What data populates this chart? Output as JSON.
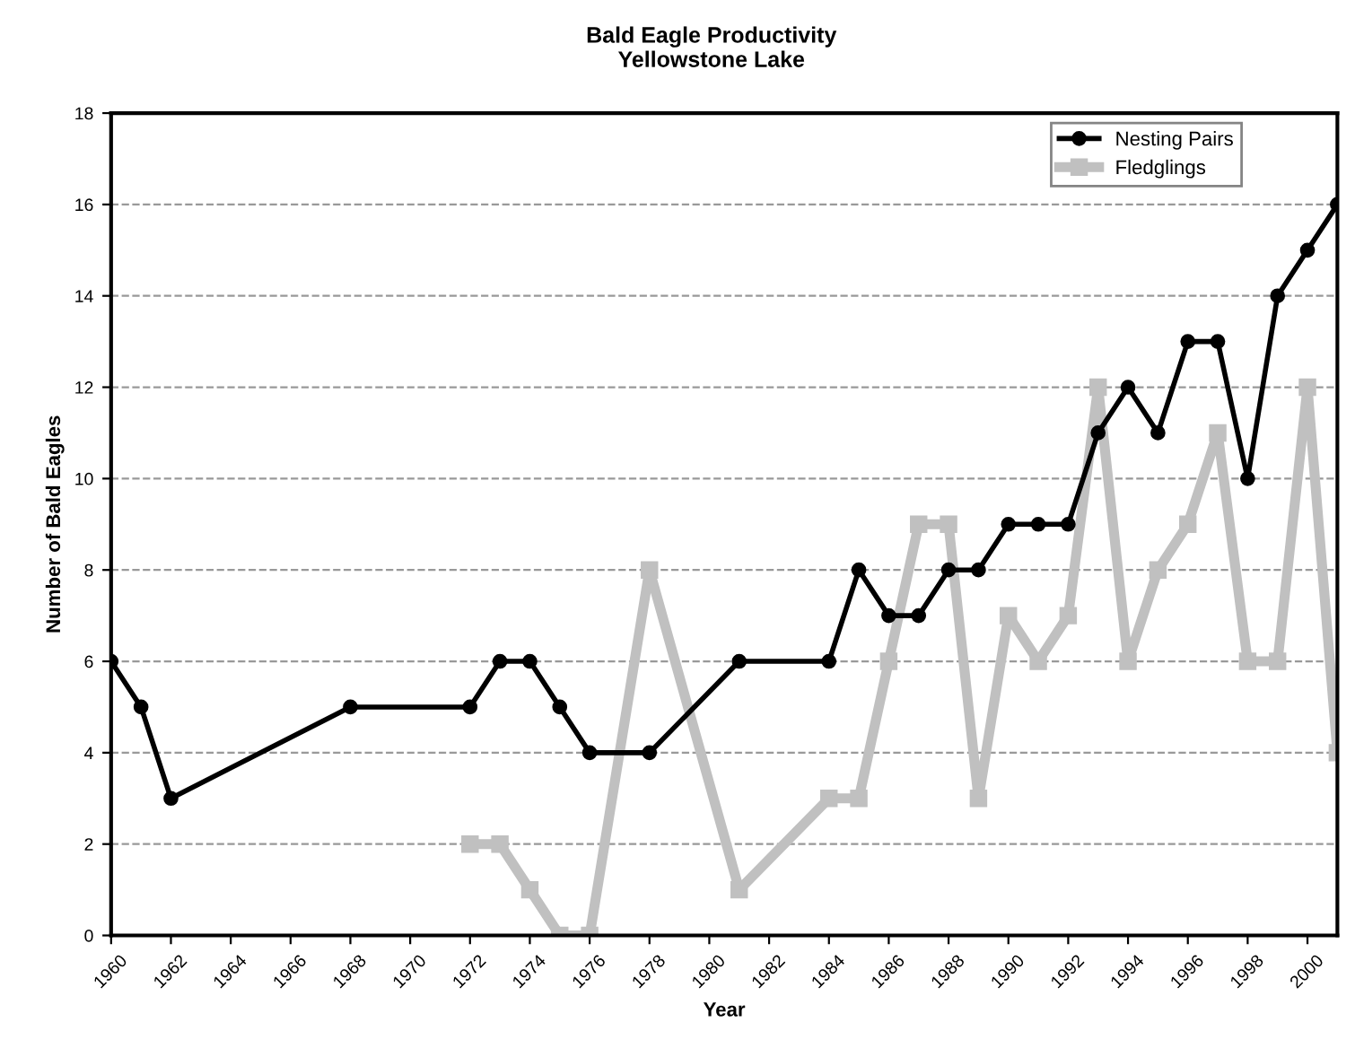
{
  "chart_data": {
    "type": "line",
    "title": "Bald Eagle Productivity",
    "subtitle": "Yellowstone Lake",
    "xlabel": "Year",
    "ylabel": "Number of Bald Eagles",
    "series": [
      {
        "name": "Nesting Pairs",
        "color": "#000000",
        "marker": "circle",
        "x": [
          1960,
          1961,
          1962,
          1968,
          1972,
          1973,
          1974,
          1975,
          1976,
          1978,
          1981,
          1984,
          1985,
          1986,
          1987,
          1988,
          1989,
          1990,
          1991,
          1992,
          1993,
          1994,
          1995,
          1996,
          1997,
          1998,
          1999,
          2000,
          2001
        ],
        "values": [
          6,
          5,
          3,
          5,
          5,
          6,
          6,
          5,
          4,
          4,
          6,
          6,
          8,
          7,
          7,
          8,
          8,
          9,
          9,
          9,
          11,
          12,
          11,
          13,
          13,
          10,
          14,
          15,
          16
        ]
      },
      {
        "name": "Fledglings",
        "color": "#c0c0c0",
        "marker": "square",
        "x": [
          1972,
          1973,
          1974,
          1975,
          1976,
          1978,
          1981,
          1984,
          1985,
          1986,
          1987,
          1988,
          1989,
          1990,
          1991,
          1992,
          1993,
          1994,
          1995,
          1996,
          1997,
          1998,
          1999,
          2000,
          2001
        ],
        "values": [
          2,
          2,
          1,
          0,
          0,
          8,
          1,
          3,
          3,
          6,
          9,
          9,
          3,
          7,
          6,
          7,
          12,
          6,
          8,
          9,
          11,
          6,
          6,
          12,
          4
        ]
      }
    ],
    "xlim": [
      1960,
      2001
    ],
    "xticks": [
      1960,
      1962,
      1964,
      1966,
      1968,
      1970,
      1972,
      1974,
      1976,
      1978,
      1980,
      1982,
      1984,
      1986,
      1988,
      1990,
      1992,
      1994,
      1996,
      1998,
      2000
    ],
    "ylim": [
      0,
      18
    ],
    "yticks": [
      0,
      2,
      4,
      6,
      8,
      10,
      12,
      14,
      16,
      18
    ],
    "grid": "y",
    "legend": "top right"
  }
}
